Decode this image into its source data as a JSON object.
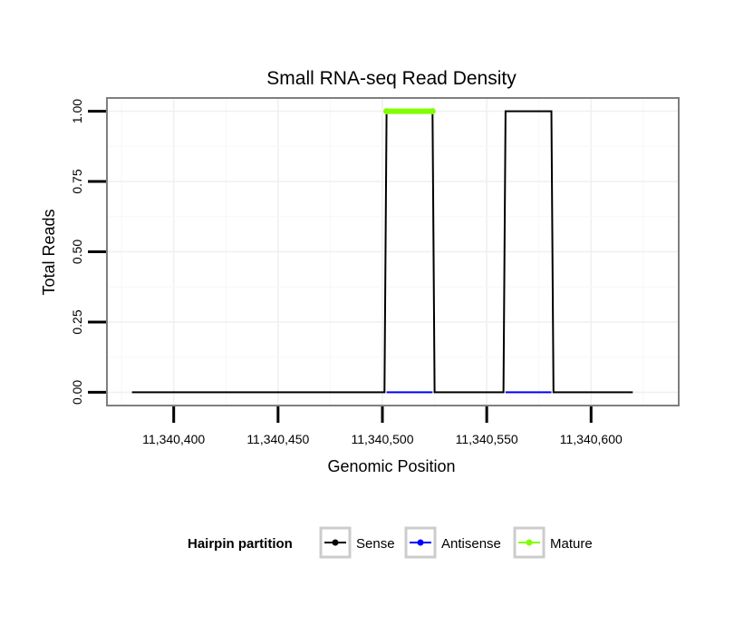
{
  "chart_data": {
    "type": "line",
    "title": "Small RNA-seq Read Density",
    "xlabel": "Genomic Position",
    "ylabel": "Total Reads",
    "xlim": [
      11340368,
      11340642
    ],
    "ylim": [
      -0.047,
      1.047
    ],
    "x_ticks": [
      11340400,
      11340450,
      11340500,
      11340550,
      11340600
    ],
    "x_tick_labels": [
      "11,340,400",
      "11,340,450",
      "11,340,500",
      "11,340,550",
      "11,340,600"
    ],
    "y_ticks": [
      0,
      0.25,
      0.5,
      0.75,
      1.0
    ],
    "y_tick_labels": [
      "0.00",
      "0.25",
      "0.50",
      "0.75",
      "1.00"
    ],
    "grid": true,
    "legend": {
      "title": "Hairpin partition",
      "position": "bottom",
      "entries": [
        {
          "name": "Sense",
          "color": "#000000"
        },
        {
          "name": "Antisense",
          "color": "#0000ff"
        },
        {
          "name": "Mature",
          "color": "#7fff00"
        }
      ]
    },
    "series": [
      {
        "name": "Sense",
        "color": "#000000",
        "x": [
          11340380,
          11340501,
          11340502,
          11340524,
          11340525,
          11340558,
          11340559,
          11340581,
          11340582,
          11340620
        ],
        "y": [
          0,
          0,
          1,
          1,
          0,
          0,
          1,
          1,
          0,
          0
        ]
      },
      {
        "name": "Antisense",
        "color": "#0000ff",
        "x": [
          11340502,
          11340524,
          11340559,
          11340581
        ],
        "y": [
          0,
          0,
          0,
          0
        ],
        "segments": [
          [
            0,
            1
          ],
          [
            2,
            3
          ]
        ]
      },
      {
        "name": "Mature",
        "color": "#7fff00",
        "x": [
          11340502,
          11340524
        ],
        "y": [
          1,
          1
        ]
      }
    ]
  }
}
